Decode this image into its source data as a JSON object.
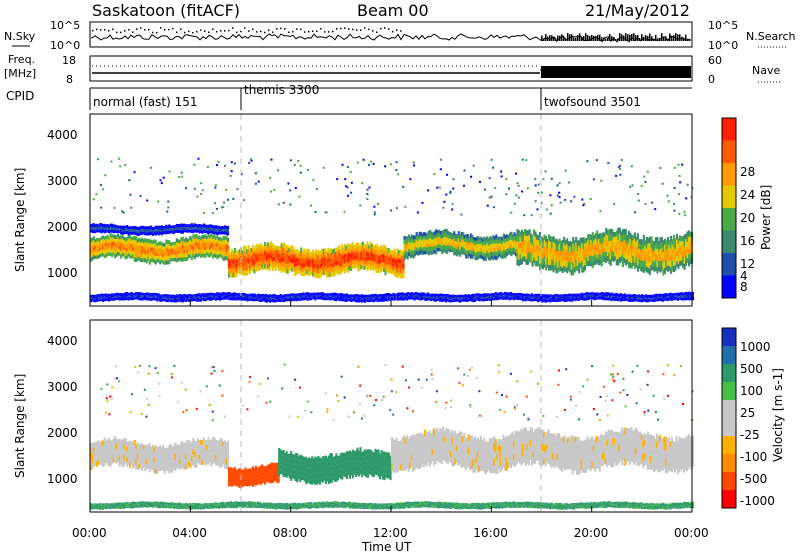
{
  "header": {
    "station": "Saskatoon (fitACF)",
    "beam": "Beam 00",
    "date": "21/May/2012"
  },
  "noise_panel": {
    "left_label": "N.Sky",
    "left_ticks": [
      "10^5",
      "10^0"
    ],
    "right_label": "N.Search",
    "right_ticks": [
      "10^5",
      "10^0"
    ]
  },
  "freq_panel": {
    "left_label_line1": "Freq.",
    "left_label_line2": "[MHz]",
    "left_ticks": [
      "18",
      "8"
    ],
    "right_label": "Nave",
    "right_ticks": [
      "60",
      "0"
    ]
  },
  "cpid_panel": {
    "label": "CPID",
    "segments": [
      {
        "start_hour": 0,
        "text": "normal (fast) 151"
      },
      {
        "start_hour": 6,
        "text": "themis 3300"
      },
      {
        "start_hour": 18,
        "text": "twofsound 3501"
      }
    ]
  },
  "x_axis": {
    "label": "Time UT",
    "ticks": [
      "00:00",
      "04:00",
      "08:00",
      "12:00",
      "16:00",
      "20:00",
      "00:00"
    ],
    "tick_hours": [
      0,
      4,
      8,
      12,
      16,
      20,
      24
    ],
    "range_hours": [
      0,
      24
    ]
  },
  "colors": {
    "power_scale": [
      "#0000ff",
      "#1f4faa",
      "#3b8a6e",
      "#4aaa4a",
      "#e6c800",
      "#ff9a00",
      "#ff5a00",
      "#ff2000"
    ],
    "velocity_scale": [
      "#ff0000",
      "#ff4a00",
      "#ff8c00",
      "#ffb000",
      "#c8c8c8",
      "#c8c8c8",
      "#44c144",
      "#2e9a6a",
      "#1e6faa",
      "#1a2fbf"
    ],
    "grey": "#c8c8c8"
  },
  "chart_data": [
    {
      "type": "heatmap",
      "title": "",
      "xlabel": "Time UT",
      "ylabel": "Slant Range [km]",
      "yticks": [
        1000,
        2000,
        3000,
        4000
      ],
      "ylim": [
        200,
        4600
      ],
      "xlim": [
        0,
        24
      ],
      "colorbar_label": "Power [dB]",
      "colorbar_ticks": [
        "4",
        "8",
        "12",
        "16",
        "20",
        "24",
        "28"
      ],
      "colorbar_range": [
        0,
        30
      ],
      "bands": [
        {
          "x_start": 0.0,
          "x_end": 5.5,
          "range_center": 1500,
          "range_halfwidth": 300,
          "power": 24
        },
        {
          "x_start": 0.0,
          "x_end": 5.5,
          "range_center": 1950,
          "range_halfwidth": 120,
          "power": 8
        },
        {
          "x_start": 5.5,
          "x_end": 12.5,
          "range_center": 1250,
          "range_halfwidth": 350,
          "power": 28
        },
        {
          "x_start": 12.5,
          "x_end": 17.0,
          "range_center": 1600,
          "range_halfwidth": 300,
          "power": 20
        },
        {
          "x_start": 17.0,
          "x_end": 24.0,
          "range_center": 1450,
          "range_halfwidth": 450,
          "power": 22
        },
        {
          "x_start": 0.0,
          "x_end": 24.0,
          "range_center": 400,
          "range_halfwidth": 100,
          "power": 6
        }
      ]
    },
    {
      "type": "heatmap",
      "title": "",
      "xlabel": "Time UT",
      "ylabel": "Slant Range [km]",
      "yticks": [
        1000,
        2000,
        3000,
        4000
      ],
      "ylim": [
        200,
        4600
      ],
      "xlim": [
        0,
        24
      ],
      "colorbar_label": "Velocity [m s-1]",
      "colorbar_ticks": [
        "1000",
        "500",
        "100",
        "25",
        "-25",
        "-100",
        "-500",
        "-1000"
      ],
      "colorbar_range": [
        -1000,
        1000
      ],
      "bands": [
        {
          "x_start": 0.0,
          "x_end": 5.5,
          "range_center": 1500,
          "range_halfwidth": 350,
          "velocity": 0
        },
        {
          "x_start": 5.5,
          "x_end": 7.5,
          "range_center": 1050,
          "range_halfwidth": 250,
          "velocity": -150
        },
        {
          "x_start": 7.5,
          "x_end": 12.0,
          "range_center": 1250,
          "range_halfwidth": 350,
          "velocity": 150
        },
        {
          "x_start": 12.0,
          "x_end": 24.0,
          "range_center": 1600,
          "range_halfwidth": 450,
          "velocity": 0
        },
        {
          "x_start": 0.0,
          "x_end": 24.0,
          "range_center": 350,
          "range_halfwidth": 80,
          "velocity": 120
        }
      ]
    }
  ]
}
